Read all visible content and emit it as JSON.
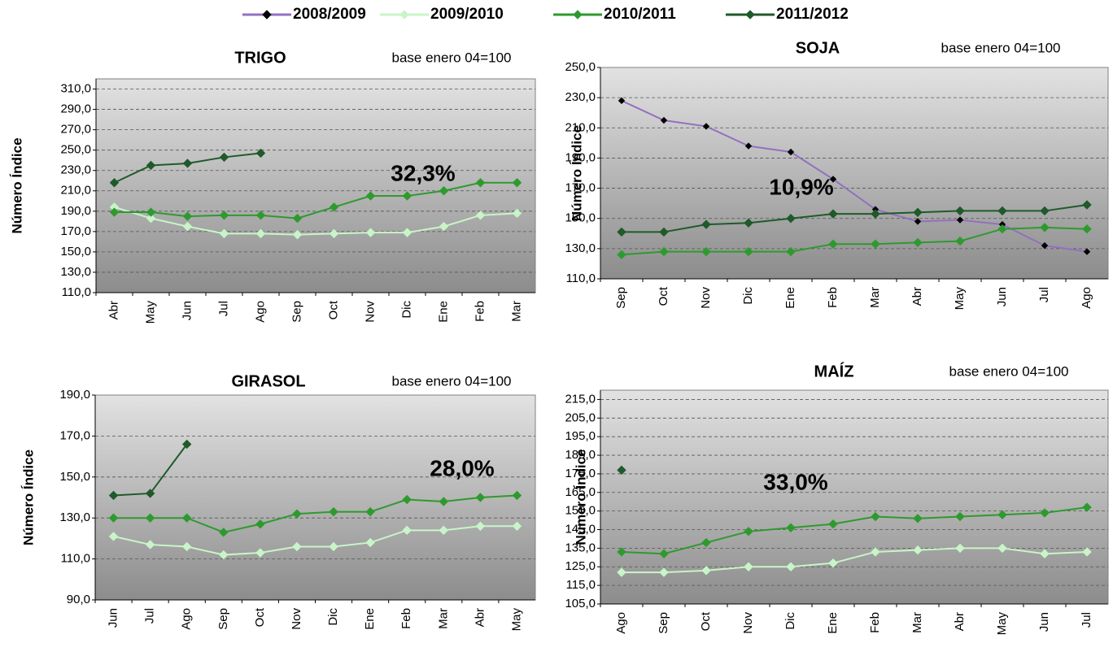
{
  "chart_data": [
    {
      "type": "line",
      "title": "TRIGO",
      "subtitle": "base enero 04=100",
      "y_label": "Número Índice",
      "annotation": "32,3%",
      "categories": [
        "Abr",
        "May",
        "Jun",
        "Jul",
        "Ago",
        "Sep",
        "Oct",
        "Nov",
        "Dic",
        "Ene",
        "Feb",
        "Mar"
      ],
      "ylim": [
        110,
        320
      ],
      "yticks": [
        {
          "value": 110,
          "label": "110,0"
        },
        {
          "value": 130,
          "label": "130,0"
        },
        {
          "value": 150,
          "label": "150,0"
        },
        {
          "value": 170,
          "label": "170,0"
        },
        {
          "value": 190,
          "label": "190,0"
        },
        {
          "value": 210,
          "label": "210,0"
        },
        {
          "value": 230,
          "label": "230,0"
        },
        {
          "value": 250,
          "label": "250,0"
        },
        {
          "value": 270,
          "label": "270,0"
        },
        {
          "value": 290,
          "label": "290,0"
        },
        {
          "value": 310,
          "label": "310,0"
        }
      ],
      "grid": true,
      "series": [
        {
          "name": "2009/2010",
          "color": "#c8f5c8",
          "values": [
            194,
            183,
            175,
            168,
            168,
            167,
            168,
            169,
            169,
            175,
            186,
            188
          ]
        },
        {
          "name": "2010/2011",
          "color": "#2e9a2e",
          "values": [
            189,
            189,
            185,
            186,
            186,
            183,
            194,
            205,
            205,
            210,
            218,
            218
          ]
        },
        {
          "name": "2011/2012",
          "color": "#1f5a2a",
          "values": [
            218,
            235,
            237,
            243,
            247,
            null,
            null,
            null,
            null,
            null,
            null,
            null
          ]
        }
      ]
    },
    {
      "type": "line",
      "title": "SOJA",
      "subtitle": "base enero 04=100",
      "y_label": "Número Índice",
      "annotation": "10,9%",
      "categories": [
        "Sep",
        "Oct",
        "Nov",
        "Dic",
        "Ene",
        "Feb",
        "Mar",
        "Abr",
        "May",
        "Jun",
        "Jul",
        "Ago"
      ],
      "ylim": [
        110,
        250
      ],
      "yticks": [
        {
          "value": 110,
          "label": "110,0"
        },
        {
          "value": 130,
          "label": "130,0"
        },
        {
          "value": 150,
          "label": "150,0"
        },
        {
          "value": 170,
          "label": "170,0"
        },
        {
          "value": 190,
          "label": "190,0"
        },
        {
          "value": 210,
          "label": "210,0"
        },
        {
          "value": 230,
          "label": "230,0"
        },
        {
          "value": 250,
          "label": "250,0"
        }
      ],
      "grid": true,
      "series": [
        {
          "name": "2008/2009",
          "color": "#9370c0",
          "marker_color": "#000000",
          "values": [
            228,
            215,
            211,
            198,
            194,
            176,
            156,
            148,
            149,
            146,
            132,
            128
          ]
        },
        {
          "name": "2010/2011",
          "color": "#2e9a2e",
          "values": [
            126,
            128,
            128,
            128,
            128,
            133,
            133,
            134,
            135,
            143,
            144,
            143
          ]
        },
        {
          "name": "2011/2012",
          "color": "#1f5a2a",
          "values": [
            141,
            141,
            146,
            147,
            150,
            153,
            153,
            154,
            155,
            155,
            155,
            159
          ]
        }
      ]
    },
    {
      "type": "line",
      "title": "GIRASOL",
      "subtitle": "base enero 04=100",
      "y_label": "Número Índice",
      "annotation": "28,0%",
      "categories": [
        "Jun",
        "Jul",
        "Ago",
        "Sep",
        "Oct",
        "Nov",
        "Dic",
        "Ene",
        "Feb",
        "Mar",
        "Abr",
        "May"
      ],
      "ylim": [
        90,
        190
      ],
      "yticks": [
        {
          "value": 90,
          "label": "90,0"
        },
        {
          "value": 110,
          "label": "110,0"
        },
        {
          "value": 130,
          "label": "130,0"
        },
        {
          "value": 150,
          "label": "150,0"
        },
        {
          "value": 170,
          "label": "170,0"
        },
        {
          "value": 190,
          "label": "190,0"
        }
      ],
      "grid": true,
      "series": [
        {
          "name": "2009/2010",
          "color": "#c8f5c8",
          "values": [
            121,
            117,
            116,
            112,
            113,
            116,
            116,
            118,
            124,
            124,
            126,
            126
          ]
        },
        {
          "name": "2010/2011",
          "color": "#2e9a2e",
          "values": [
            130,
            130,
            130,
            123,
            127,
            132,
            133,
            133,
            139,
            138,
            140,
            141
          ]
        },
        {
          "name": "2011/2012",
          "color": "#1f5a2a",
          "values": [
            141,
            142,
            166,
            null,
            null,
            null,
            null,
            null,
            null,
            null,
            null,
            null
          ]
        }
      ]
    },
    {
      "type": "line",
      "title": "MAÍZ",
      "subtitle": "base enero 04=100",
      "y_label": "Número Índice",
      "annotation": "33,0%",
      "categories": [
        "Ago",
        "Sep",
        "Oct",
        "Nov",
        "Dic",
        "Ene",
        "Feb",
        "Mar",
        "Abr",
        "May",
        "Jun",
        "Jul"
      ],
      "ylim": [
        105,
        220
      ],
      "yticks": [
        {
          "value": 105,
          "label": "105,0"
        },
        {
          "value": 115,
          "label": "115,0"
        },
        {
          "value": 125,
          "label": "125,0"
        },
        {
          "value": 135,
          "label": "135,0"
        },
        {
          "value": 145,
          "label": "145,0"
        },
        {
          "value": 155,
          "label": "155,0"
        },
        {
          "value": 165,
          "label": "165,0"
        },
        {
          "value": 175,
          "label": "175,0"
        },
        {
          "value": 185,
          "label": "185,0"
        },
        {
          "value": 195,
          "label": "195,0"
        },
        {
          "value": 205,
          "label": "205,0"
        },
        {
          "value": 215,
          "label": "215,0"
        }
      ],
      "grid": true,
      "series": [
        {
          "name": "2009/2010",
          "color": "#c8f5c8",
          "values": [
            122,
            122,
            123,
            125,
            125,
            127,
            133,
            134,
            135,
            135,
            132,
            133
          ]
        },
        {
          "name": "2010/2011",
          "color": "#2e9a2e",
          "values": [
            133,
            132,
            138,
            144,
            146,
            148,
            152,
            151,
            152,
            153,
            154,
            157
          ]
        },
        {
          "name": "2011/2012",
          "color": "#1f5a2a",
          "values": [
            177,
            null,
            null,
            null,
            null,
            null,
            null,
            null,
            null,
            null,
            null,
            null
          ]
        }
      ]
    }
  ]
}
